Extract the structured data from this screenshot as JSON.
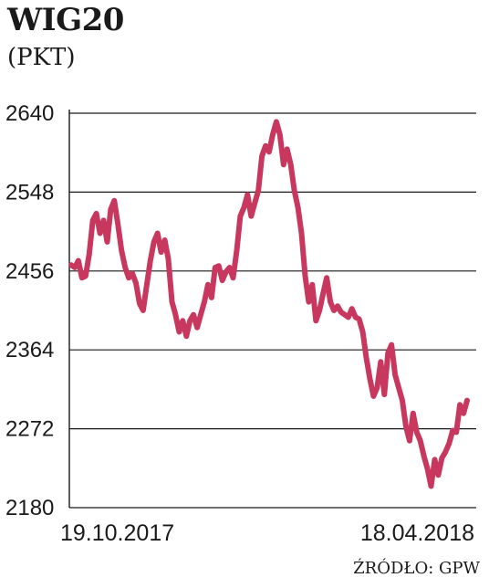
{
  "header": {
    "title": "WIG20",
    "subtitle": "(PKT)"
  },
  "footer": {
    "source": "ŹRÓDŁO: GPW"
  },
  "chart_data": {
    "type": "line",
    "title": "WIG20",
    "ylabel": "(PKT)",
    "xlabel": "",
    "x_range_labels": [
      "19.10.2017",
      "18.04.2018"
    ],
    "ylim": [
      2180,
      2640
    ],
    "yticks": [
      2640,
      2548,
      2456,
      2364,
      2272,
      2180
    ],
    "grid": true,
    "line_color": "#c8375e",
    "series": [
      {
        "values": [
          2463,
          2460,
          2468,
          2448,
          2450,
          2475,
          2515,
          2523,
          2500,
          2515,
          2490,
          2528,
          2538,
          2510,
          2480,
          2460,
          2448,
          2453,
          2442,
          2418,
          2410,
          2440,
          2468,
          2490,
          2500,
          2478,
          2492,
          2470,
          2420,
          2405,
          2385,
          2398,
          2380,
          2398,
          2405,
          2390,
          2405,
          2420,
          2440,
          2425,
          2460,
          2462,
          2445,
          2455,
          2460,
          2448,
          2480,
          2520,
          2530,
          2545,
          2520,
          2535,
          2550,
          2590,
          2602,
          2595,
          2615,
          2630,
          2615,
          2580,
          2598,
          2580,
          2550,
          2530,
          2500,
          2450,
          2420,
          2440,
          2398,
          2410,
          2430,
          2448,
          2420,
          2410,
          2415,
          2408,
          2405,
          2402,
          2412,
          2402,
          2400,
          2385,
          2355,
          2330,
          2310,
          2320,
          2350,
          2312,
          2360,
          2370,
          2335,
          2320,
          2305,
          2275,
          2258,
          2290,
          2268,
          2258,
          2240,
          2225,
          2205,
          2236,
          2218,
          2238,
          2245,
          2255,
          2270,
          2268,
          2300,
          2290,
          2305
        ]
      }
    ]
  }
}
